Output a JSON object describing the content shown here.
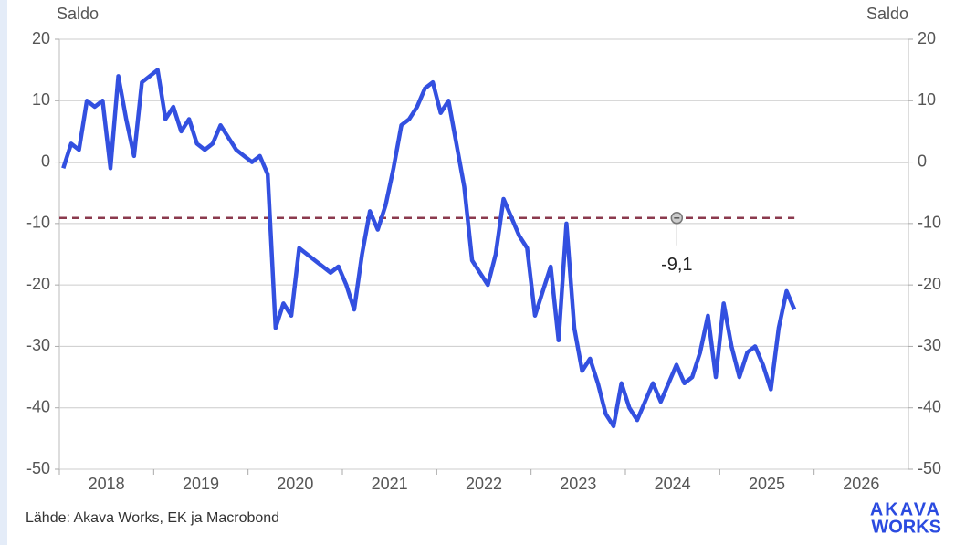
{
  "chart_data": {
    "type": "line",
    "y_axis_label": "Saldo",
    "y2_axis_label": "Saldo",
    "source": "Lähde: Akava Works, EK ja Macrobond",
    "logo": [
      "AKAVA",
      "WORKS"
    ],
    "x": [
      "2018-01",
      "2018-02",
      "2018-03",
      "2018-04",
      "2018-05",
      "2018-06",
      "2018-07",
      "2018-08",
      "2018-09",
      "2018-10",
      "2018-11",
      "2018-12",
      "2019-01",
      "2019-02",
      "2019-03",
      "2019-04",
      "2019-05",
      "2019-06",
      "2019-07",
      "2019-08",
      "2019-09",
      "2019-10",
      "2019-11",
      "2019-12",
      "2020-01",
      "2020-02",
      "2020-03",
      "2020-04",
      "2020-05",
      "2020-06",
      "2020-07",
      "2020-08",
      "2020-09",
      "2020-10",
      "2020-11",
      "2020-12",
      "2021-01",
      "2021-02",
      "2021-03",
      "2021-04",
      "2021-05",
      "2021-06",
      "2021-07",
      "2021-08",
      "2021-09",
      "2021-10",
      "2021-11",
      "2021-12",
      "2022-01",
      "2022-02",
      "2022-03",
      "2022-04",
      "2022-05",
      "2022-06",
      "2022-07",
      "2022-08",
      "2022-09",
      "2022-10",
      "2022-11",
      "2022-12",
      "2023-01",
      "2023-02",
      "2023-03",
      "2023-04",
      "2023-05",
      "2023-06",
      "2023-07",
      "2023-08",
      "2023-09",
      "2023-10",
      "2023-11",
      "2023-12",
      "2024-01",
      "2024-02",
      "2024-03",
      "2024-04",
      "2024-05",
      "2024-06",
      "2024-07",
      "2024-08",
      "2024-09",
      "2024-10",
      "2024-11",
      "2024-12",
      "2025-01",
      "2025-02",
      "2025-03",
      "2025-04",
      "2025-05",
      "2025-06",
      "2025-07",
      "2025-08",
      "2025-09",
      "2025-10"
    ],
    "series": [
      {
        "color": "#3350e0",
        "values": [
          -1,
          3,
          2,
          10,
          9,
          10,
          -1,
          14,
          7,
          1,
          13,
          14,
          15,
          7,
          9,
          5,
          7,
          3,
          2,
          3,
          6,
          4,
          2,
          1,
          0,
          1,
          -2,
          -27,
          -23,
          -25,
          -14,
          -15,
          -16,
          -17,
          -18,
          -17,
          -20,
          -24,
          -15,
          -8,
          -11,
          -7,
          -1,
          6,
          7,
          9,
          12,
          13,
          8,
          10,
          3,
          -4,
          -16,
          -18,
          -20,
          -15,
          -6,
          -9,
          -12,
          -14,
          -25,
          -21,
          -17,
          -29,
          -10,
          -27,
          -34,
          -32,
          -36,
          -41,
          -43,
          -36,
          -40,
          -42,
          -39,
          -36,
          -39,
          -36,
          -33,
          -36,
          -35,
          -31,
          -25,
          -35,
          -23,
          -30,
          -35,
          -31,
          -30,
          -33,
          -37,
          -27,
          -21,
          -24
        ]
      }
    ],
    "reference_line": {
      "value": -9.1,
      "label": "-9,1",
      "color": "#8b3a4e"
    },
    "xlim": [
      2018,
      2027
    ],
    "xticks": [
      {
        "value": 2018,
        "label": "2018"
      },
      {
        "value": 2019,
        "label": "2019"
      },
      {
        "value": 2020,
        "label": "2020"
      },
      {
        "value": 2021,
        "label": "2021"
      },
      {
        "value": 2022,
        "label": "2022"
      },
      {
        "value": 2023,
        "label": "2023"
      },
      {
        "value": 2024,
        "label": "2024"
      },
      {
        "value": 2025,
        "label": "2025"
      },
      {
        "value": 2026,
        "label": "2026"
      }
    ],
    "ylim": [
      -50,
      20
    ],
    "yticks": [
      -50,
      -40,
      -30,
      -20,
      -10,
      0,
      10,
      20
    ],
    "y2lim": [
      -50,
      20
    ],
    "y2ticks": [
      -50,
      -40,
      -30,
      -20,
      -10,
      0,
      10,
      20
    ],
    "grid": true
  }
}
